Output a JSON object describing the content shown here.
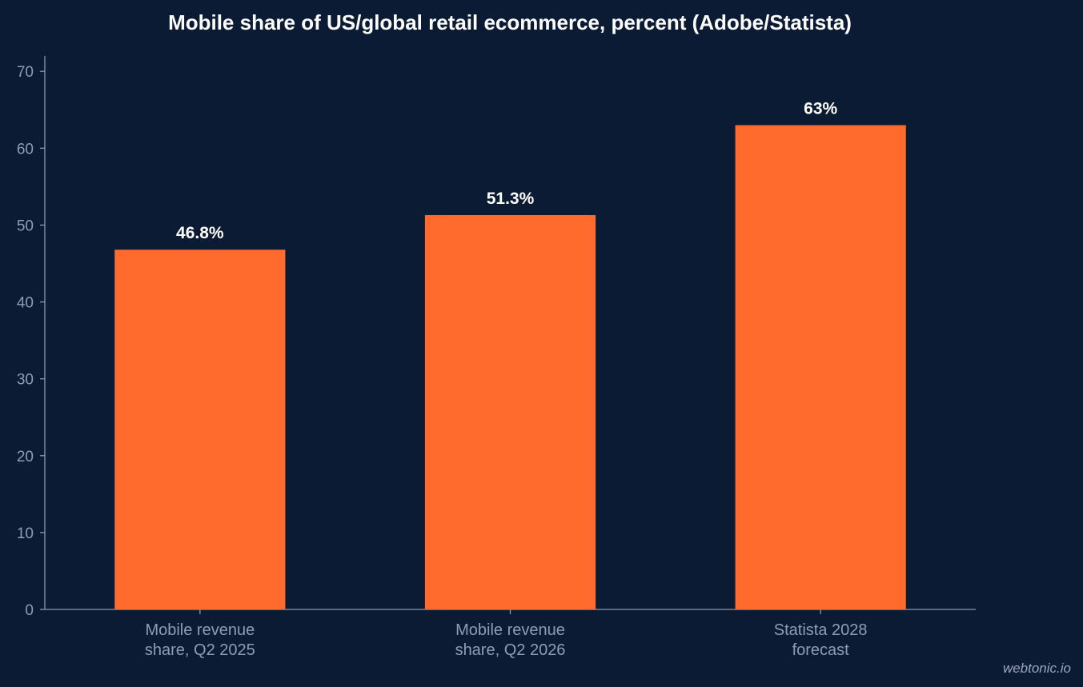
{
  "chart_data": {
    "type": "bar",
    "title": "Mobile share of US/global retail ecommerce, percent (Adobe/Statista)",
    "categories": [
      [
        "Mobile revenue",
        "share, Q2 2025"
      ],
      [
        "Mobile revenue",
        "share, Q2 2026"
      ],
      [
        "Statista 2028",
        "forecast"
      ]
    ],
    "values": [
      46.8,
      51.3,
      63
    ],
    "value_labels": [
      "46.8%",
      "51.3%",
      "63%"
    ],
    "xlabel": "",
    "ylabel": "",
    "ylim": [
      0,
      72
    ],
    "yticks": [
      0,
      10,
      20,
      30,
      40,
      50,
      60,
      70
    ],
    "grid": false,
    "legend": "none"
  },
  "colors": {
    "background": "#0b1b34",
    "bar": "#ff6b2c",
    "axis": "#8a98b0",
    "tick_text": "#8f9db3",
    "title_text": "#ffffff",
    "value_text": "#ffffff",
    "watermark_text": "#9aa6ba"
  },
  "watermark": "webtonic.io"
}
